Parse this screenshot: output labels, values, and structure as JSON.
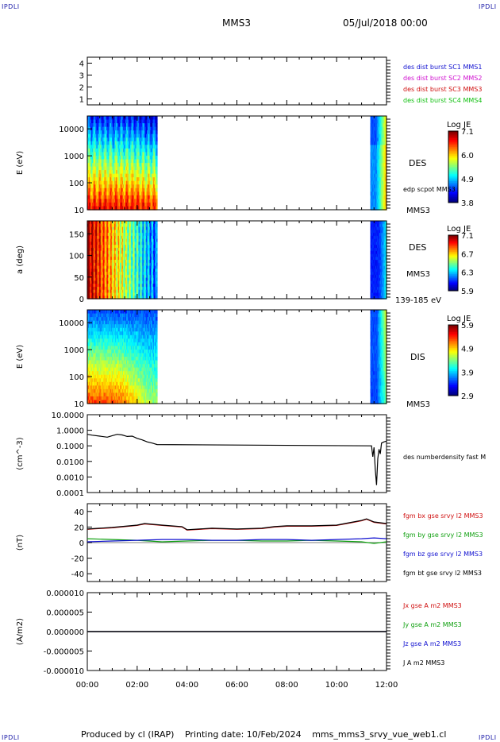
{
  "corners": {
    "tl": "IPDLI",
    "tr": "IPDLI",
    "bl": "IPDLI",
    "br": "IPDLI"
  },
  "header": {
    "spacecraft": "MMS3",
    "date": "05/Jul/2018 00:00"
  },
  "footer": {
    "produced_by": "Produced by cl (IRAP)",
    "printing_date": "Printing date: 10/Feb/2024",
    "file": "mms_mms3_srvy_vue_web1.cl"
  },
  "chart_data": [
    {
      "type": "line",
      "id": "burst",
      "ylim": [
        0.5,
        4.5
      ],
      "yticks": [
        "1",
        "2",
        "3",
        "4"
      ],
      "legend": [
        {
          "label": "des dist burst SC1 MMS1",
          "color": "#1010d0"
        },
        {
          "label": "des dist burst SC2 MMS2",
          "color": "#d010d0"
        },
        {
          "label": "des dist burst SC3 MMS3",
          "color": "#d01010"
        },
        {
          "label": "des dist burst SC4 MMS4",
          "color": "#10c010"
        }
      ]
    },
    {
      "type": "heatmap",
      "id": "des-energy",
      "ylabel": "E (eV)",
      "yscale": "log",
      "ylim": [
        10,
        30000
      ],
      "yticks": [
        "10",
        "100",
        "1000",
        "10000"
      ],
      "right_labels": [
        "DES",
        "edp scpot MMS3",
        "MMS3"
      ],
      "colorbar": {
        "title": "Log JE",
        "ticks": [
          "7.1",
          "6.0",
          "4.9",
          "3.8"
        ]
      },
      "data_segments": [
        [
          0.0,
          2.8
        ],
        [
          11.35,
          12.0
        ]
      ]
    },
    {
      "type": "heatmap",
      "id": "des-pitch",
      "ylabel": "a (deg)",
      "ylim": [
        0,
        180
      ],
      "yticks": [
        "0",
        "50",
        "100",
        "150"
      ],
      "right_labels": [
        "DES",
        "MMS3",
        "139-185 eV"
      ],
      "colorbar": {
        "title": "Log JE",
        "ticks": [
          "7.1",
          "6.7",
          "6.3",
          "5.9"
        ]
      },
      "data_segments": [
        [
          0.0,
          2.8
        ],
        [
          11.35,
          12.0
        ]
      ]
    },
    {
      "type": "heatmap",
      "id": "dis-energy",
      "ylabel": "E (eV)",
      "yscale": "log",
      "ylim": [
        10,
        30000
      ],
      "yticks": [
        "10",
        "100",
        "1000",
        "10000"
      ],
      "right_labels": [
        "DIS",
        "MMS3"
      ],
      "colorbar": {
        "title": "Log JE",
        "ticks": [
          "5.9",
          "4.9",
          "3.9",
          "2.9"
        ]
      },
      "data_segments": [
        [
          0.0,
          2.8
        ],
        [
          11.35,
          12.0
        ]
      ]
    },
    {
      "type": "line",
      "id": "density",
      "ylabel": "(cm^-3)",
      "yscale": "log",
      "ylim": [
        0.0001,
        10
      ],
      "yticks": [
        "0.0001",
        "0.0010",
        "0.0100",
        "0.1000",
        "1.0000",
        "10.0000"
      ],
      "series": [
        {
          "name": "des numberdensity fast M",
          "color": "#000000",
          "x": [
            0.0,
            0.2,
            0.5,
            0.8,
            1.0,
            1.2,
            1.4,
            1.6,
            1.8,
            2.0,
            2.2,
            2.4,
            2.6,
            2.8,
            11.4,
            11.45,
            11.5,
            11.55,
            11.6,
            11.65,
            11.7,
            11.75,
            11.8,
            11.9,
            12.0
          ],
          "y": [
            0.55,
            0.48,
            0.42,
            0.36,
            0.45,
            0.55,
            0.5,
            0.4,
            0.42,
            0.3,
            0.24,
            0.18,
            0.15,
            0.12,
            0.1,
            0.02,
            0.08,
            0.003,
            0.0003,
            0.015,
            0.06,
            0.03,
            0.15,
            0.18,
            0.2
          ]
        }
      ]
    },
    {
      "type": "line",
      "id": "fgm",
      "ylabel": "(nT)",
      "ylim": [
        -50,
        50
      ],
      "yticks": [
        "-40",
        "-20",
        "0",
        "20",
        "40"
      ],
      "series": [
        {
          "name": "fgm bx gse srvy l2 MMS3",
          "color": "#d01010",
          "x": [
            0,
            1,
            2,
            2.3,
            3,
            3.8,
            4,
            5,
            6,
            7,
            7.5,
            8,
            9,
            10,
            10.5,
            11,
            11.2,
            11.5,
            12
          ],
          "y": [
            17,
            19,
            22,
            24,
            22,
            20,
            16,
            18,
            17,
            18,
            20,
            21,
            21,
            22,
            25,
            28,
            30,
            26,
            24
          ]
        },
        {
          "name": "fgm by gse srvy l2 MMS3",
          "color": "#10a010",
          "x": [
            0,
            1,
            2,
            3,
            4,
            5,
            6,
            7,
            8,
            9,
            10,
            11,
            11.5,
            12
          ],
          "y": [
            5,
            4,
            3,
            1,
            2,
            3,
            3,
            2,
            2,
            3,
            2,
            1,
            -1,
            1
          ]
        },
        {
          "name": "fgm bz gse srvy l2 MMS3",
          "color": "#1010d0",
          "x": [
            0,
            1,
            2,
            3,
            4,
            5,
            6,
            7,
            8,
            9,
            10,
            11,
            11.5,
            12
          ],
          "y": [
            1,
            2,
            3,
            4,
            4,
            3,
            3,
            4,
            4,
            3,
            4,
            5,
            6,
            5
          ]
        },
        {
          "name": "fgm bt gse srvy l2 MMS3",
          "color": "#000000",
          "x": [
            0,
            1,
            2,
            2.3,
            3,
            3.8,
            4,
            5,
            6,
            7,
            7.5,
            8,
            9,
            10,
            10.5,
            11,
            11.2,
            11.5,
            12
          ],
          "y": [
            17.5,
            19.5,
            22.5,
            24.5,
            22.5,
            20.5,
            16.5,
            18.5,
            17.5,
            18.5,
            20.5,
            21.5,
            21.5,
            22.5,
            25.5,
            28.5,
            30.5,
            26.5,
            24.5
          ]
        }
      ]
    },
    {
      "type": "line",
      "id": "current",
      "ylabel": "(A/m2)",
      "ylim": [
        -1e-05,
        1e-05
      ],
      "yticks": [
        "-0.000010",
        "-0.000005",
        "0.000000",
        "0.000005",
        "0.000010"
      ],
      "xlim": [
        0,
        12
      ],
      "xticks": [
        "00:00",
        "02:00",
        "04:00",
        "06:00",
        "08:00",
        "10:00",
        "12:00"
      ],
      "series": [
        {
          "name": "Jx gse A m2 MMS3",
          "color": "#d01010",
          "x": [
            0,
            12
          ],
          "y": [
            0,
            0
          ]
        },
        {
          "name": "Jy gse A m2 MMS3",
          "color": "#10a010",
          "x": [
            0,
            12
          ],
          "y": [
            0,
            0
          ]
        },
        {
          "name": "Jz gse A m2 MMS3",
          "color": "#1010d0",
          "x": [
            0,
            12
          ],
          "y": [
            0,
            0
          ]
        },
        {
          "name": "J A m2 MMS3",
          "color": "#000000",
          "x": [
            0,
            12
          ],
          "y": [
            0,
            0
          ]
        }
      ]
    }
  ]
}
